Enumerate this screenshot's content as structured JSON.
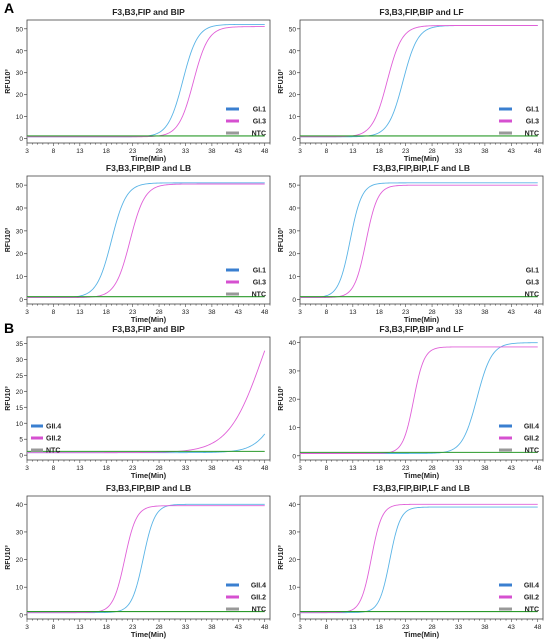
{
  "figure": {
    "panel_letters": [
      "A",
      "B"
    ]
  },
  "colors": {
    "blue": "#5ab4e6",
    "magenta": "#e060d8",
    "green": "#2a9a2a",
    "legend_blue": "#3a7fd0",
    "legend_magenta": "#d650d0",
    "legend_gray": "#999999"
  },
  "chart_data": [
    {
      "type": "line",
      "title": "F3,B3,FIP and BIP",
      "xlabel": "Time(Min)",
      "ylabel": "RFU10³",
      "xlim": [
        3,
        49
      ],
      "ylim": [
        -2,
        54
      ],
      "xticks": [
        3,
        8,
        13,
        18,
        23,
        28,
        33,
        38,
        43,
        48
      ],
      "yticks": [
        0,
        10,
        20,
        30,
        40,
        50
      ],
      "legend": {
        "position": "lower-right",
        "swatches": true
      },
      "series": [
        {
          "name": "GI.1",
          "color": "#5ab4e6",
          "baseline": 0.8,
          "plateau": 52,
          "midpoint": 32.5,
          "width": 1.4
        },
        {
          "name": "GI.3",
          "color": "#e060d8",
          "baseline": 0.8,
          "plateau": 51,
          "midpoint": 34.5,
          "width": 1.4
        },
        {
          "name": "NTC",
          "color": "#2a9a2a",
          "baseline": 1.2,
          "plateau": 1.2,
          "midpoint": 30,
          "width": 2
        }
      ]
    },
    {
      "type": "line",
      "title": "F3,B3,FIP,BIP and LF",
      "xlabel": "Time(Min)",
      "ylabel": "RFU10³",
      "xlim": [
        3,
        49
      ],
      "ylim": [
        -2,
        54
      ],
      "xticks": [
        3,
        8,
        13,
        18,
        23,
        28,
        33,
        38,
        43,
        48
      ],
      "yticks": [
        0,
        10,
        20,
        30,
        40,
        50
      ],
      "legend": {
        "position": "lower-right",
        "swatches": true
      },
      "series": [
        {
          "name": "GI.1",
          "color": "#5ab4e6",
          "baseline": 0.8,
          "plateau": 51.5,
          "midpoint": 22.5,
          "width": 1.4
        },
        {
          "name": "GI.3",
          "color": "#e060d8",
          "baseline": 0.8,
          "plateau": 51.5,
          "midpoint": 19.5,
          "width": 1.4
        },
        {
          "name": "NTC",
          "color": "#2a9a2a",
          "baseline": 1.2,
          "plateau": 1.2,
          "midpoint": 30,
          "width": 2
        }
      ]
    },
    {
      "type": "line",
      "title": "F3,B3,FIP,BIP and LB",
      "xlabel": "Time(Min)",
      "ylabel": "RFU10³",
      "xlim": [
        3,
        49
      ],
      "ylim": [
        -2,
        54
      ],
      "xticks": [
        3,
        8,
        13,
        18,
        23,
        28,
        33,
        38,
        43,
        48
      ],
      "yticks": [
        0,
        10,
        20,
        30,
        40,
        50
      ],
      "legend": {
        "position": "lower-right",
        "swatches": true
      },
      "series": [
        {
          "name": "GI.1",
          "color": "#5ab4e6",
          "baseline": 0.8,
          "plateau": 51,
          "midpoint": 19,
          "width": 1.4
        },
        {
          "name": "GI.3",
          "color": "#e060d8",
          "baseline": 0.8,
          "plateau": 50.5,
          "midpoint": 22.5,
          "width": 1.4
        },
        {
          "name": "NTC",
          "color": "#2a9a2a",
          "baseline": 1.2,
          "plateau": 1.2,
          "midpoint": 30,
          "width": 2
        }
      ]
    },
    {
      "type": "line",
      "title": "F3,B3,FIP,BIP,LF and LB",
      "xlabel": "Time(Min)",
      "ylabel": "RFU10³",
      "xlim": [
        3,
        49
      ],
      "ylim": [
        -2,
        54
      ],
      "xticks": [
        3,
        8,
        13,
        18,
        23,
        28,
        33,
        38,
        43,
        48
      ],
      "yticks": [
        0,
        10,
        20,
        30,
        40,
        50
      ],
      "legend": {
        "position": "lower-right",
        "swatches": false
      },
      "series": [
        {
          "name": "GI.1",
          "color": "#5ab4e6",
          "baseline": 0.8,
          "plateau": 51,
          "midpoint": 12.5,
          "width": 1.1
        },
        {
          "name": "GI.3",
          "color": "#e060d8",
          "baseline": 0.8,
          "plateau": 50,
          "midpoint": 15.5,
          "width": 1.1
        },
        {
          "name": "NTC",
          "color": "#2a9a2a",
          "baseline": 1.2,
          "plateau": 1.2,
          "midpoint": 30,
          "width": 2
        }
      ]
    },
    {
      "type": "line",
      "title": "F3,B3,FIP and BIP",
      "xlabel": "Time(Min)",
      "ylabel": "RFU10³",
      "xlim": [
        3,
        49
      ],
      "ylim": [
        -1.5,
        37
      ],
      "xticks": [
        3,
        8,
        13,
        18,
        23,
        28,
        33,
        38,
        43,
        48
      ],
      "yticks": [
        0,
        5,
        10,
        15,
        20,
        25,
        30,
        35
      ],
      "legend": {
        "position": "lower-left",
        "swatches": true
      },
      "series": [
        {
          "name": "GII.4",
          "color": "#5ab4e6",
          "baseline": 0.8,
          "plateau": 40,
          "midpoint": 52,
          "width": 2.3
        },
        {
          "name": "GII.2",
          "color": "#e060d8",
          "baseline": 0.8,
          "plateau": 60,
          "midpoint": 47.5,
          "width": 3.2
        },
        {
          "name": "NTC",
          "color": "#2a9a2a",
          "baseline": 1.2,
          "plateau": 1.2,
          "midpoint": 30,
          "width": 2
        }
      ]
    },
    {
      "type": "line",
      "title": "F3,B3,FIP,BIP and LF",
      "xlabel": "Time(Min)",
      "ylabel": "RFU10³",
      "xlim": [
        3,
        49
      ],
      "ylim": [
        -1.5,
        42
      ],
      "xticks": [
        3,
        8,
        13,
        18,
        23,
        28,
        33,
        38,
        43,
        48
      ],
      "yticks": [
        0,
        10,
        20,
        30,
        40
      ],
      "legend": {
        "position": "lower-right",
        "swatches": true
      },
      "series": [
        {
          "name": "GII.4",
          "color": "#5ab4e6",
          "baseline": 0.8,
          "plateau": 40,
          "midpoint": 36.5,
          "width": 1.4
        },
        {
          "name": "GII.2",
          "color": "#e060d8",
          "baseline": 0.8,
          "plateau": 38.5,
          "midpoint": 24.5,
          "width": 1.0
        },
        {
          "name": "NTC",
          "color": "#2a9a2a",
          "baseline": 1.2,
          "plateau": 1.2,
          "midpoint": 30,
          "width": 2
        }
      ]
    },
    {
      "type": "line",
      "title": "F3,B3,FIP,BIP and LB",
      "xlabel": "Time(Min)",
      "ylabel": "RFU10³",
      "xlim": [
        3,
        49
      ],
      "ylim": [
        -1.5,
        43
      ],
      "xticks": [
        3,
        8,
        13,
        18,
        23,
        28,
        33,
        38,
        43,
        48
      ],
      "yticks": [
        0,
        10,
        20,
        30,
        40
      ],
      "legend": {
        "position": "lower-right",
        "swatches": true
      },
      "series": [
        {
          "name": "GII.4",
          "color": "#5ab4e6",
          "baseline": 0.8,
          "plateau": 40,
          "midpoint": 25,
          "width": 1.1
        },
        {
          "name": "GII.2",
          "color": "#e060d8",
          "baseline": 0.8,
          "plateau": 39.5,
          "midpoint": 21.5,
          "width": 1.1
        },
        {
          "name": "NTC",
          "color": "#2a9a2a",
          "baseline": 1.2,
          "plateau": 1.2,
          "midpoint": 30,
          "width": 2
        }
      ]
    },
    {
      "type": "line",
      "title": "F3,B3,FIP,BIP,LF and LB",
      "xlabel": "Time(Min)",
      "ylabel": "RFU10³",
      "xlim": [
        3,
        49
      ],
      "ylim": [
        -1.5,
        43
      ],
      "xticks": [
        3,
        8,
        13,
        18,
        23,
        28,
        33,
        38,
        43,
        48
      ],
      "yticks": [
        0,
        10,
        20,
        30,
        40
      ],
      "legend": {
        "position": "lower-right",
        "swatches": true
      },
      "series": [
        {
          "name": "GII.4",
          "color": "#5ab4e6",
          "baseline": 0.8,
          "plateau": 39,
          "midpoint": 20,
          "width": 1.0
        },
        {
          "name": "GII.2",
          "color": "#e060d8",
          "baseline": 0.8,
          "plateau": 40,
          "midpoint": 16.5,
          "width": 1.0
        },
        {
          "name": "NTC",
          "color": "#2a9a2a",
          "baseline": 1.2,
          "plateau": 1.2,
          "midpoint": 30,
          "width": 2
        }
      ]
    }
  ]
}
